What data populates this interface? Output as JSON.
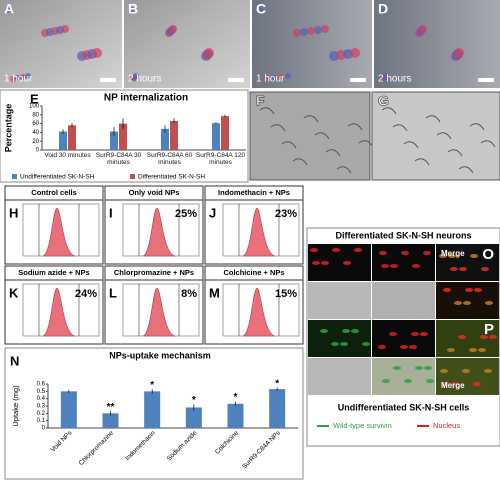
{
  "panels": {
    "top": [
      {
        "letter": "A",
        "caption": "1 hour"
      },
      {
        "letter": "B",
        "caption": "2 hours"
      },
      {
        "letter": "C",
        "caption": "1 hour"
      },
      {
        "letter": "D",
        "caption": "2 hours"
      }
    ],
    "images": [
      {
        "letter": "F"
      },
      {
        "letter": "G"
      }
    ],
    "flow": [
      {
        "letter": "H",
        "title": "Control cells",
        "percent": null
      },
      {
        "letter": "I",
        "title": "Only void NPs",
        "percent": "25%"
      },
      {
        "letter": "J",
        "title": "Indomethacin + NPs",
        "percent": "23%"
      },
      {
        "letter": "K",
        "title": "Sodium azide + NPs",
        "percent": "24%"
      },
      {
        "letter": "L",
        "title": "Chlorpromazine + NPs",
        "percent": "8%"
      },
      {
        "letter": "M",
        "title": "Colchicine + NPs",
        "percent": "15%"
      }
    ],
    "micro": {
      "title": "Differentiated SK-N-SH neurons",
      "merge_top": "Merge",
      "letter_top": "O",
      "merge_bottom": "Merge",
      "letter_bottom": "P",
      "footer": "Undifferentiated SK-N-SH cells",
      "legend": [
        {
          "name": "Wild-type survivin",
          "color": "#2ea043"
        },
        {
          "name": "Nucleus",
          "color": "#e02020"
        }
      ]
    }
  },
  "chart_data": [
    {
      "type": "bar",
      "letter": "E",
      "title": "NP internalization",
      "y_label": "Percentage",
      "categories": [
        "Void 30 minutes",
        "SurR9-C84A 30 minutes",
        "SurR9-C84A 60 minutes",
        "SurR9-C84A 120 minutes"
      ],
      "series": [
        {
          "name": "Undifferentiated SK-N-SH",
          "color": "#4f81bd",
          "values": [
            42,
            42,
            48,
            61
          ],
          "errors": [
            5,
            10,
            8,
            2
          ]
        },
        {
          "name": "Differentiated SK-N-SH",
          "color": "#c0504d",
          "values": [
            56,
            60,
            66,
            77
          ],
          "errors": [
            5,
            12,
            6,
            3
          ]
        }
      ],
      "ylim": [
        0,
        100
      ],
      "yticks": [
        0,
        20,
        40,
        60,
        80,
        100
      ]
    },
    {
      "type": "bar",
      "letter": "N",
      "title": "NPs-uptake mechanism",
      "y_label": "Uptake (mg)",
      "categories": [
        "Void NPs",
        "Chlorpromazine",
        "Indomethacin",
        "Sodium azide",
        "Colchicine",
        "SurR9-C84A NPs"
      ],
      "values": [
        0.5,
        0.2,
        0.5,
        0.28,
        0.33,
        0.53
      ],
      "errors": [
        0.02,
        0.03,
        0.03,
        0.04,
        0.03,
        0.02
      ],
      "significance": [
        null,
        "**",
        "*",
        "*",
        "*",
        "*"
      ],
      "color": "#4f81bd",
      "ylim": [
        0,
        0.6
      ],
      "yticks": [
        0,
        0.1,
        0.2,
        0.3,
        0.4,
        0.5,
        0.6
      ]
    }
  ]
}
